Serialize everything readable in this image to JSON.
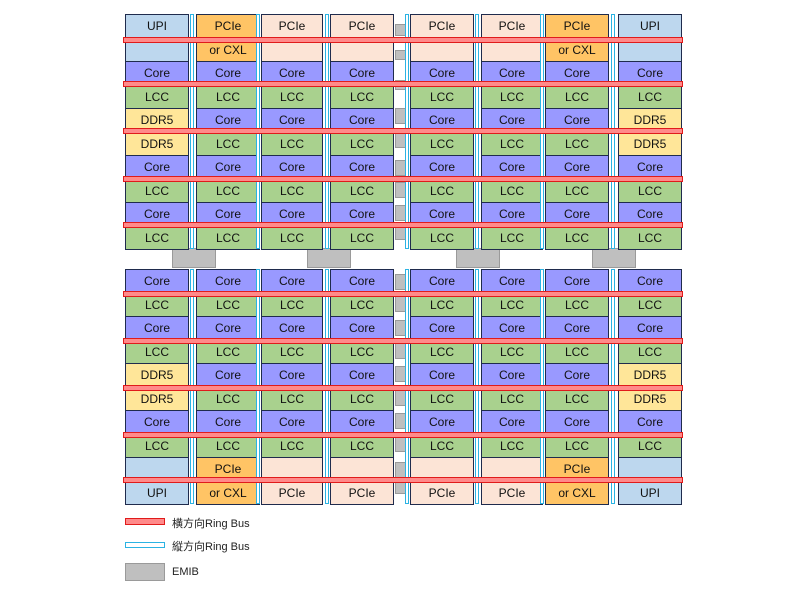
{
  "colors": {
    "upi": "#bdd7ee",
    "pcie": "#fce4d6",
    "pcie_cxl": "#ffc465",
    "core": "#9999ff",
    "lcc": "#a9d18e",
    "ddr5": "#ffe699",
    "emib": "#bfbfbf",
    "horizontal_bus": "#e01b1b",
    "vertical_bus": "#2bb3e3"
  },
  "top_die": {
    "rows": [
      [
        "UPI",
        "PCIe",
        "PCIe",
        "PCIe",
        "PCIe",
        "PCIe",
        "PCIe",
        "UPI"
      ],
      [
        "",
        "or CXL",
        "",
        "",
        "",
        "",
        "or CXL",
        ""
      ],
      [
        "Core",
        "Core",
        "Core",
        "Core",
        "Core",
        "Core",
        "Core",
        "Core"
      ],
      [
        "LCC",
        "LCC",
        "LCC",
        "LCC",
        "LCC",
        "LCC",
        "LCC",
        "LCC"
      ],
      [
        "DDR5",
        "Core",
        "Core",
        "Core",
        "Core",
        "Core",
        "Core",
        "DDR5"
      ],
      [
        "DDR5",
        "LCC",
        "LCC",
        "LCC",
        "LCC",
        "LCC",
        "LCC",
        "DDR5"
      ],
      [
        "Core",
        "Core",
        "Core",
        "Core",
        "Core",
        "Core",
        "Core",
        "Core"
      ],
      [
        "LCC",
        "LCC",
        "LCC",
        "LCC",
        "LCC",
        "LCC",
        "LCC",
        "LCC"
      ],
      [
        "Core",
        "Core",
        "Core",
        "Core",
        "Core",
        "Core",
        "Core",
        "Core"
      ],
      [
        "LCC",
        "LCC",
        "LCC",
        "LCC",
        "LCC",
        "LCC",
        "LCC",
        "LCC"
      ]
    ]
  },
  "bottom_die": {
    "rows": [
      [
        "Core",
        "Core",
        "Core",
        "Core",
        "Core",
        "Core",
        "Core",
        "Core"
      ],
      [
        "LCC",
        "LCC",
        "LCC",
        "LCC",
        "LCC",
        "LCC",
        "LCC",
        "LCC"
      ],
      [
        "Core",
        "Core",
        "Core",
        "Core",
        "Core",
        "Core",
        "Core",
        "Core"
      ],
      [
        "LCC",
        "LCC",
        "LCC",
        "LCC",
        "LCC",
        "LCC",
        "LCC",
        "LCC"
      ],
      [
        "DDR5",
        "Core",
        "Core",
        "Core",
        "Core",
        "Core",
        "Core",
        "DDR5"
      ],
      [
        "DDR5",
        "LCC",
        "LCC",
        "LCC",
        "LCC",
        "LCC",
        "LCC",
        "DDR5"
      ],
      [
        "Core",
        "Core",
        "Core",
        "Core",
        "Core",
        "Core",
        "Core",
        "Core"
      ],
      [
        "LCC",
        "LCC",
        "LCC",
        "LCC",
        "LCC",
        "LCC",
        "LCC",
        "LCC"
      ],
      [
        "",
        "PCIe",
        "",
        "",
        "",
        "",
        "PCIe",
        ""
      ],
      [
        "UPI",
        "or CXL",
        "PCIe",
        "PCIe",
        "PCIe",
        "PCIe",
        "or CXL",
        "UPI"
      ]
    ]
  },
  "legend": {
    "horizontal": "横方向Ring Bus",
    "vertical": "縦方向Ring Bus",
    "emib": "EMIB"
  }
}
